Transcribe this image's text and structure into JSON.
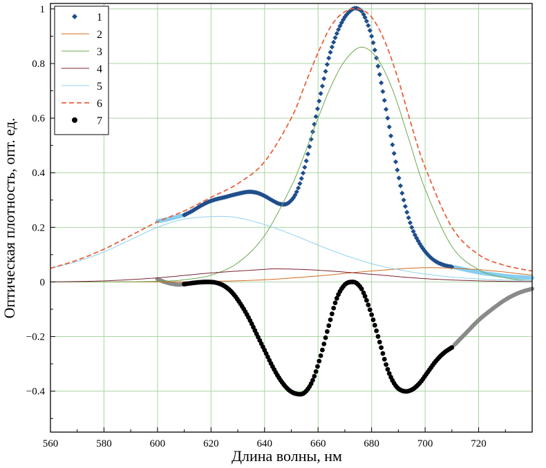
{
  "chart_data": {
    "type": "line",
    "xlabel": "Длина волны, нм",
    "ylabel": "Оптическая плотность, опт. ед.",
    "xlim": [
      560,
      740
    ],
    "ylim": [
      -0.55,
      1.02
    ],
    "grid": true,
    "legend_position": "top-left",
    "x_ticks": [
      560,
      580,
      600,
      620,
      640,
      660,
      680,
      700,
      720
    ],
    "x_tick_labels": [
      "560",
      "580",
      "600",
      "620",
      "640",
      "660",
      "680",
      "700",
      "720"
    ],
    "y_ticks": [
      -0.4,
      -0.2,
      0,
      0.2,
      0.4,
      0.6,
      0.8,
      1
    ],
    "y_tick_labels": [
      "−0.4",
      "−0.2",
      "0",
      "0.2",
      "0.4",
      "0.6",
      "0.8",
      "1"
    ],
    "series": [
      {
        "name": "1",
        "style": "diamond-markers",
        "color": "#1f4e8c",
        "x": [
          610,
          613,
          616,
          619,
          622,
          625,
          628,
          631,
          634,
          637,
          640,
          643,
          646,
          649,
          652,
          655,
          658,
          661,
          664,
          667,
          670,
          673,
          675,
          677,
          680,
          683,
          686,
          689,
          692,
          695,
          698,
          701,
          704,
          707,
          710
        ],
        "y": [
          0.245,
          0.26,
          0.278,
          0.293,
          0.303,
          0.31,
          0.318,
          0.325,
          0.33,
          0.327,
          0.315,
          0.298,
          0.285,
          0.29,
          0.33,
          0.42,
          0.55,
          0.69,
          0.82,
          0.91,
          0.97,
          1.0,
          1.0,
          0.98,
          0.9,
          0.76,
          0.6,
          0.44,
          0.3,
          0.2,
          0.14,
          0.1,
          0.075,
          0.062,
          0.055
        ]
      },
      {
        "name": "2",
        "style": "line",
        "color": "#d2691e",
        "x": [
          560,
          580,
          600,
          620,
          640,
          660,
          680,
          700,
          720,
          740
        ],
        "y": [
          0.0,
          0.0,
          0.0,
          0.002,
          0.008,
          0.022,
          0.04,
          0.052,
          0.045,
          0.025
        ]
      },
      {
        "name": "3",
        "style": "line",
        "color": "#6aa84f",
        "x": [
          560,
          580,
          600,
          610,
          620,
          630,
          640,
          650,
          655,
          660,
          665,
          670,
          676,
          682,
          688,
          694,
          700,
          710,
          720,
          730,
          740
        ],
        "y": [
          0.0,
          0.0,
          0.002,
          0.008,
          0.025,
          0.07,
          0.17,
          0.35,
          0.47,
          0.6,
          0.72,
          0.81,
          0.86,
          0.82,
          0.7,
          0.52,
          0.34,
          0.13,
          0.045,
          0.015,
          0.004
        ]
      },
      {
        "name": "4",
        "style": "line",
        "color": "#7a1f2f",
        "x": [
          560,
          580,
          600,
          620,
          640,
          645,
          660,
          680,
          700,
          720,
          740
        ],
        "y": [
          0.0,
          0.004,
          0.015,
          0.033,
          0.046,
          0.048,
          0.043,
          0.028,
          0.012,
          0.004,
          0.001
        ]
      },
      {
        "name": "5",
        "style": "line",
        "color": "#8fd0ef",
        "x": [
          560,
          570,
          580,
          590,
          600,
          610,
          622,
          630,
          640,
          650,
          660,
          670,
          680,
          690,
          700,
          710,
          720,
          730,
          740
        ],
        "y": [
          0.05,
          0.075,
          0.11,
          0.155,
          0.2,
          0.23,
          0.24,
          0.235,
          0.21,
          0.175,
          0.135,
          0.098,
          0.067,
          0.045,
          0.029,
          0.018,
          0.011,
          0.007,
          0.005
        ]
      },
      {
        "name": "6",
        "style": "dashed-line",
        "color": "#e8603c",
        "x": [
          560,
          570,
          580,
          590,
          600,
          610,
          620,
          630,
          640,
          650,
          655,
          660,
          665,
          670,
          675,
          680,
          685,
          690,
          695,
          700,
          710,
          720,
          730,
          740
        ],
        "y": [
          0.05,
          0.08,
          0.12,
          0.17,
          0.22,
          0.26,
          0.31,
          0.36,
          0.44,
          0.6,
          0.72,
          0.84,
          0.94,
          0.99,
          1.0,
          0.97,
          0.88,
          0.74,
          0.57,
          0.42,
          0.2,
          0.1,
          0.06,
          0.04
        ]
      },
      {
        "name": "7",
        "style": "circle-markers",
        "color": "#000000",
        "x": [
          610,
          613,
          616,
          619,
          622,
          625,
          628,
          631,
          634,
          637,
          640,
          643,
          646,
          649,
          652,
          655,
          658,
          661,
          664,
          667,
          670,
          673,
          675,
          677,
          680,
          683,
          686,
          689,
          692,
          695,
          698,
          701,
          704,
          707,
          710
        ],
        "y": [
          -0.008,
          -0.004,
          -0.001,
          0.0,
          -0.003,
          -0.015,
          -0.04,
          -0.08,
          -0.13,
          -0.19,
          -0.25,
          -0.31,
          -0.36,
          -0.395,
          -0.41,
          -0.405,
          -0.36,
          -0.27,
          -0.16,
          -0.06,
          -0.01,
          0.0,
          -0.01,
          -0.04,
          -0.12,
          -0.22,
          -0.32,
          -0.38,
          -0.4,
          -0.395,
          -0.37,
          -0.33,
          -0.29,
          -0.26,
          -0.24
        ]
      }
    ],
    "extrapolated_segments": [
      {
        "of_series": "1",
        "color": "#87cef0",
        "x": [
          600,
          602,
          604,
          606,
          608,
          610,
          711,
          715,
          720,
          725,
          730,
          735,
          740
        ],
        "y": [
          0.222,
          0.226,
          0.23,
          0.235,
          0.24,
          0.245,
          0.054,
          0.045,
          0.035,
          0.028,
          0.022,
          0.018,
          0.015
        ]
      },
      {
        "of_series": "7",
        "color": "#8a8a8a",
        "x": [
          600,
          602,
          604,
          606,
          608,
          610,
          711,
          715,
          720,
          725,
          730,
          735,
          740
        ],
        "y": [
          0.01,
          0.002,
          -0.004,
          -0.008,
          -0.01,
          -0.008,
          -0.23,
          -0.19,
          -0.14,
          -0.1,
          -0.065,
          -0.04,
          -0.025
        ]
      }
    ]
  }
}
